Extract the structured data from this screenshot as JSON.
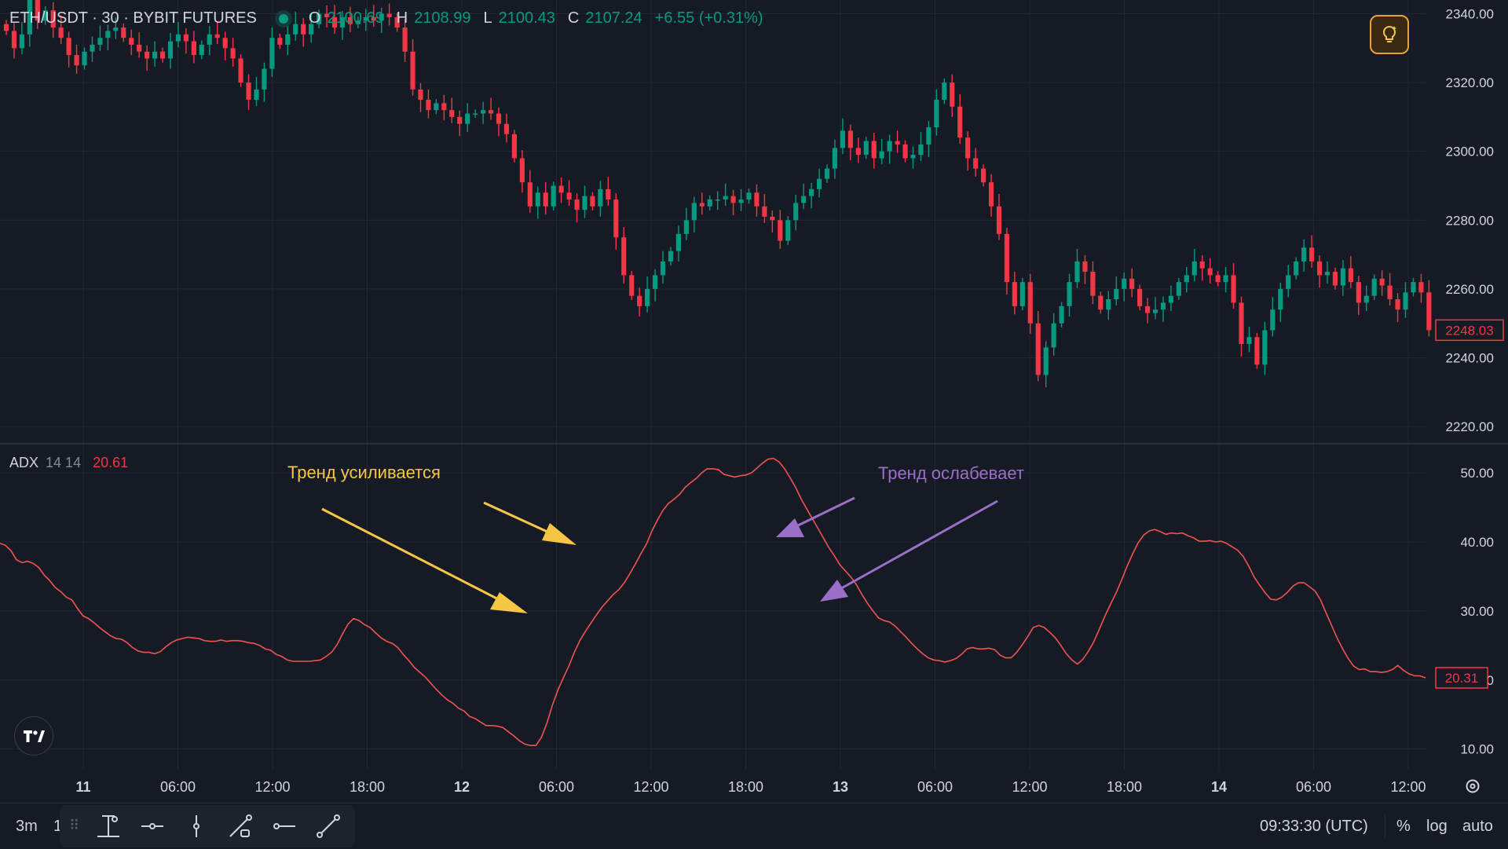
{
  "header": {
    "symbol": "ETH/USDT · 30 · BYBIT FUTURES",
    "ohlc": [
      {
        "key": "O",
        "value": "2100.69"
      },
      {
        "key": "H",
        "value": "2108.99"
      },
      {
        "key": "L",
        "value": "2100.43"
      },
      {
        "key": "C",
        "value": "2107.24"
      }
    ],
    "change": "+6.55 (+0.31%)"
  },
  "indicator": {
    "name": "ADX",
    "params": "14 14",
    "value": "20.61"
  },
  "colors": {
    "bg": "#161a25",
    "up": "#089981",
    "down": "#f23645",
    "grid": "#232734",
    "axis_text": "#d1d4dc",
    "adx_line": "#f0534f",
    "yellow": "#f6c644",
    "purple": "#9b6fc7"
  },
  "icons": {
    "idea": "lightbulb-icon",
    "logo": "tradingview-logo",
    "settings": "gear-icon"
  },
  "bottom_bar": {
    "range_label": "3m",
    "range_label_2": "1",
    "tools": [
      "crosshair-icon",
      "horizontal-ray-icon",
      "vertical-line-icon",
      "path-icon",
      "horizontal-line-icon",
      "trend-line-icon"
    ],
    "time": "09:33:30 (UTC)",
    "percent": "%",
    "log": "log",
    "auto": "auto"
  },
  "chart_data": [
    {
      "type": "candlestick",
      "title": "ETH/USDT · 30 · BYBIT FUTURES",
      "x_tick_labels": [
        "11",
        "06:00",
        "12:00",
        "18:00",
        "12",
        "06:00",
        "12:00",
        "18:00",
        "13",
        "06:00",
        "12:00",
        "18:00",
        "14",
        "06:00",
        "12:00"
      ],
      "y_ticks": [
        2220,
        2240,
        2260,
        2280,
        2300,
        2320,
        2340
      ],
      "ylim": [
        2215,
        2344
      ],
      "last_price": "2248.03",
      "candles_close": [
        2335,
        2330,
        2334,
        2345,
        2338,
        2341,
        2336,
        2333,
        2328,
        2325,
        2329,
        2331,
        2333,
        2335,
        2336,
        2333,
        2331,
        2329,
        2327,
        2329,
        2327,
        2332,
        2334,
        2332,
        2328,
        2331,
        2334,
        2333,
        2330,
        2327,
        2320,
        2315,
        2318,
        2324,
        2333,
        2331,
        2334,
        2337,
        2334,
        2337,
        2340,
        2339,
        2336,
        2339,
        2337,
        2338,
        2339,
        2338,
        2340,
        2339,
        2336,
        2329,
        2318,
        2315,
        2312,
        2314,
        2312,
        2310,
        2308,
        2311,
        2311,
        2312,
        2311,
        2308,
        2305,
        2298,
        2291,
        2284,
        2288,
        2284,
        2290,
        2288,
        2286,
        2283,
        2287,
        2284,
        2289,
        2286,
        2275,
        2264,
        2258,
        2255,
        2260,
        2264,
        2268,
        2271,
        2276,
        2280,
        2285,
        2284,
        2286,
        2286,
        2287,
        2285,
        2286,
        2288,
        2284,
        2281,
        2280,
        2274,
        2280,
        2285,
        2287,
        2289,
        2292,
        2295,
        2301,
        2306,
        2301,
        2299,
        2303,
        2298,
        2300,
        2303,
        2302,
        2298,
        2299,
        2302,
        2307,
        2315,
        2320,
        2313,
        2304,
        2298,
        2295,
        2291,
        2284,
        2276,
        2262,
        2255,
        2262,
        2250,
        2235,
        2243,
        2250,
        2255,
        2262,
        2268,
        2265,
        2258,
        2254,
        2257,
        2260,
        2263,
        2260,
        2255,
        2253,
        2254,
        2256,
        2258,
        2262,
        2264,
        2268,
        2266,
        2264,
        2262,
        2264,
        2256,
        2244,
        2246,
        2238,
        2248,
        2254,
        2260,
        2264,
        2268,
        2272,
        2268,
        2264,
        2265,
        2261,
        2266,
        2262,
        2256,
        2258,
        2263,
        2261,
        2257,
        2254,
        2259,
        2262,
        2259,
        2248
      ]
    },
    {
      "type": "line",
      "title": "ADX 14 14",
      "y_ticks": [
        10,
        20,
        30,
        40,
        50
      ],
      "ylim": [
        7,
        54
      ],
      "last_value": "20.31",
      "values": [
        39.8,
        39.5,
        38.7,
        37.4,
        37.0,
        37.2,
        36.9,
        36.3,
        35.2,
        34.4,
        33.4,
        32.8,
        32.0,
        31.6,
        30.4,
        29.3,
        28.9,
        28.3,
        27.6,
        27.0,
        26.4,
        26.0,
        25.9,
        25.4,
        24.7,
        24.2,
        24.0,
        24.0,
        23.8,
        24.1,
        24.8,
        25.4,
        25.8,
        26.0,
        26.2,
        26.1,
        26.0,
        25.7,
        25.6,
        25.6,
        25.8,
        25.6,
        25.7,
        25.7,
        25.6,
        25.4,
        25.3,
        25.0,
        24.5,
        24.3,
        23.7,
        23.4,
        22.9,
        22.7,
        22.7,
        22.7,
        22.7,
        22.8,
        22.9,
        23.4,
        24.0,
        25.1,
        26.7,
        28.1,
        28.9,
        28.6,
        28.0,
        27.6,
        26.8,
        26.1,
        25.6,
        25.3,
        24.7,
        23.7,
        22.8,
        21.8,
        21.1,
        20.4,
        19.5,
        18.6,
        17.8,
        17.1,
        16.6,
        15.9,
        15.5,
        14.7,
        14.4,
        13.9,
        13.4,
        13.4,
        13.3,
        13.1,
        12.5,
        11.9,
        11.2,
        10.7,
        10.5,
        10.5,
        11.7,
        13.8,
        16.4,
        18.6,
        20.4,
        22.1,
        24.1,
        25.8,
        27.1,
        28.3,
        29.5,
        30.6,
        31.5,
        32.4,
        33.1,
        34.1,
        35.4,
        36.8,
        38.3,
        39.7,
        41.6,
        43.2,
        44.6,
        45.6,
        46.2,
        46.9,
        47.9,
        48.6,
        49.2,
        50.0,
        50.6,
        50.6,
        50.5,
        49.8,
        49.6,
        49.4,
        49.6,
        49.7,
        50.0,
        50.7,
        51.4,
        52.0,
        52.1,
        51.6,
        50.6,
        49.3,
        47.9,
        46.2,
        44.8,
        43.4,
        42.0,
        40.6,
        39.2,
        38.0,
        36.7,
        35.8,
        34.9,
        33.8,
        32.4,
        31.1,
        30.0,
        29.0,
        28.6,
        28.4,
        27.8,
        27.0,
        26.2,
        25.3,
        24.5,
        23.8,
        23.2,
        22.9,
        22.8,
        22.6,
        22.8,
        23.1,
        23.7,
        24.5,
        24.7,
        24.5,
        24.5,
        24.6,
        24.4,
        23.6,
        23.2,
        23.2,
        24.0,
        25.1,
        26.3,
        27.6,
        27.9,
        27.6,
        26.9,
        26.1,
        25.0,
        23.8,
        22.9,
        22.3,
        23.0,
        24.2,
        25.6,
        27.4,
        29.3,
        31.0,
        32.6,
        34.5,
        36.5,
        38.3,
        39.9,
        41.0,
        41.6,
        41.8,
        41.5,
        41.1,
        41.3,
        41.2,
        41.3,
        40.9,
        40.6,
        40.1,
        40.1,
        40.2,
        40.0,
        40.1,
        39.8,
        39.3,
        38.8,
        37.9,
        36.5,
        34.9,
        33.7,
        32.6,
        31.7,
        31.6,
        32.0,
        32.7,
        33.6,
        34.1,
        34.1,
        33.5,
        32.9,
        31.6,
        29.7,
        27.9,
        26.1,
        24.5,
        23.1,
        22.0,
        21.5,
        21.6,
        21.2,
        21.2,
        21.1,
        21.2,
        21.5,
        22.1,
        21.4,
        20.9,
        20.6,
        20.6,
        20.3
      ]
    }
  ],
  "annotations": {
    "strengthening": "Тренд усиливается",
    "weakening": "Тренд ослабевает"
  }
}
